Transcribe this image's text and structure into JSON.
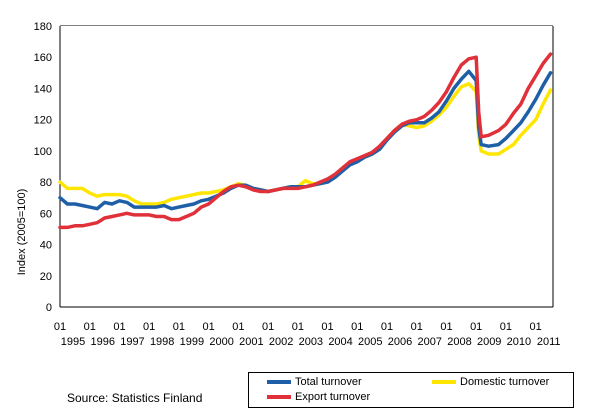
{
  "chart_data": {
    "type": "line",
    "title": "",
    "xlabel": "",
    "ylabel": "Index (2005=100)",
    "ylim": [
      0,
      180
    ],
    "yticks": [
      0,
      20,
      40,
      60,
      80,
      100,
      120,
      140,
      160,
      180
    ],
    "x_start": "1995-01",
    "x_end": "2011-08",
    "x_tick_month_label": "01",
    "x_tick_years": [
      "1995",
      "1996",
      "1997",
      "1998",
      "1999",
      "2000",
      "2001",
      "2002",
      "2003",
      "2004",
      "2005",
      "2006",
      "2007",
      "2008",
      "2009",
      "2010",
      "2011"
    ],
    "grid": "dotted",
    "legend_position": "bottom-right",
    "series": [
      {
        "name": "Total turnover",
        "color": "#1f5fa8",
        "points": [
          [
            "1995-01",
            70
          ],
          [
            "1995-04",
            66
          ],
          [
            "1995-07",
            66
          ],
          [
            "1995-10",
            65
          ],
          [
            "1996-01",
            64
          ],
          [
            "1996-04",
            63
          ],
          [
            "1996-07",
            67
          ],
          [
            "1996-10",
            66
          ],
          [
            "1997-01",
            68
          ],
          [
            "1997-04",
            67
          ],
          [
            "1997-07",
            64
          ],
          [
            "1997-10",
            64
          ],
          [
            "1998-01",
            64
          ],
          [
            "1998-04",
            64
          ],
          [
            "1998-07",
            65
          ],
          [
            "1998-10",
            63
          ],
          [
            "1999-01",
            64
          ],
          [
            "1999-04",
            65
          ],
          [
            "1999-07",
            66
          ],
          [
            "1999-10",
            68
          ],
          [
            "2000-01",
            69
          ],
          [
            "2000-04",
            71
          ],
          [
            "2000-07",
            73
          ],
          [
            "2000-10",
            76
          ],
          [
            "2001-01",
            78
          ],
          [
            "2001-04",
            78
          ],
          [
            "2001-07",
            76
          ],
          [
            "2001-10",
            75
          ],
          [
            "2002-01",
            74
          ],
          [
            "2002-04",
            75
          ],
          [
            "2002-07",
            76
          ],
          [
            "2002-10",
            77
          ],
          [
            "2003-01",
            77
          ],
          [
            "2003-04",
            77
          ],
          [
            "2003-07",
            78
          ],
          [
            "2003-10",
            79
          ],
          [
            "2004-01",
            80
          ],
          [
            "2004-04",
            83
          ],
          [
            "2004-07",
            87
          ],
          [
            "2004-10",
            91
          ],
          [
            "2005-01",
            93
          ],
          [
            "2005-04",
            96
          ],
          [
            "2005-07",
            98
          ],
          [
            "2005-10",
            101
          ],
          [
            "2006-01",
            107
          ],
          [
            "2006-04",
            112
          ],
          [
            "2006-07",
            116
          ],
          [
            "2006-10",
            118
          ],
          [
            "2007-01",
            118
          ],
          [
            "2007-04",
            118
          ],
          [
            "2007-07",
            121
          ],
          [
            "2007-10",
            125
          ],
          [
            "2008-01",
            132
          ],
          [
            "2008-04",
            140
          ],
          [
            "2008-07",
            146
          ],
          [
            "2008-10",
            151
          ],
          [
            "2009-01",
            145
          ],
          [
            "2009-02",
            115
          ],
          [
            "2009-03",
            104
          ],
          [
            "2009-06",
            103
          ],
          [
            "2009-10",
            104
          ],
          [
            "2010-01",
            108
          ],
          [
            "2010-04",
            113
          ],
          [
            "2010-07",
            118
          ],
          [
            "2010-10",
            125
          ],
          [
            "2011-01",
            133
          ],
          [
            "2011-04",
            142
          ],
          [
            "2011-07",
            150
          ]
        ]
      },
      {
        "name": "Domestic turnover",
        "color": "#ffe600",
        "points": [
          [
            "1995-01",
            80
          ],
          [
            "1995-04",
            76
          ],
          [
            "1995-07",
            76
          ],
          [
            "1995-10",
            76
          ],
          [
            "1996-01",
            73
          ],
          [
            "1996-04",
            71
          ],
          [
            "1996-07",
            72
          ],
          [
            "1996-10",
            72
          ],
          [
            "1997-01",
            72
          ],
          [
            "1997-04",
            71
          ],
          [
            "1997-07",
            68
          ],
          [
            "1997-10",
            66
          ],
          [
            "1998-01",
            66
          ],
          [
            "1998-04",
            66
          ],
          [
            "1998-07",
            67
          ],
          [
            "1998-10",
            69
          ],
          [
            "1999-01",
            70
          ],
          [
            "1999-04",
            71
          ],
          [
            "1999-07",
            72
          ],
          [
            "1999-10",
            73
          ],
          [
            "2000-01",
            73
          ],
          [
            "2000-04",
            74
          ],
          [
            "2000-07",
            75
          ],
          [
            "2000-10",
            77
          ],
          [
            "2001-01",
            79
          ],
          [
            "2001-04",
            78
          ],
          [
            "2001-07",
            76
          ],
          [
            "2001-10",
            75
          ],
          [
            "2002-01",
            74
          ],
          [
            "2002-04",
            75
          ],
          [
            "2002-07",
            76
          ],
          [
            "2002-10",
            77
          ],
          [
            "2003-01",
            77
          ],
          [
            "2003-04",
            81
          ],
          [
            "2003-07",
            79
          ],
          [
            "2003-10",
            79
          ],
          [
            "2004-01",
            80
          ],
          [
            "2004-04",
            84
          ],
          [
            "2004-07",
            88
          ],
          [
            "2004-10",
            92
          ],
          [
            "2005-01",
            94
          ],
          [
            "2005-04",
            96
          ],
          [
            "2005-07",
            98
          ],
          [
            "2005-10",
            102
          ],
          [
            "2006-01",
            108
          ],
          [
            "2006-04",
            113
          ],
          [
            "2006-07",
            117
          ],
          [
            "2006-10",
            116
          ],
          [
            "2007-01",
            115
          ],
          [
            "2007-04",
            116
          ],
          [
            "2007-07",
            119
          ],
          [
            "2007-10",
            123
          ],
          [
            "2008-01",
            128
          ],
          [
            "2008-04",
            135
          ],
          [
            "2008-07",
            141
          ],
          [
            "2008-10",
            143
          ],
          [
            "2009-01",
            138
          ],
          [
            "2009-02",
            110
          ],
          [
            "2009-03",
            100
          ],
          [
            "2009-06",
            98
          ],
          [
            "2009-10",
            98
          ],
          [
            "2010-01",
            101
          ],
          [
            "2010-04",
            104
          ],
          [
            "2010-07",
            110
          ],
          [
            "2010-10",
            115
          ],
          [
            "2011-01",
            120
          ],
          [
            "2011-04",
            130
          ],
          [
            "2011-07",
            139
          ]
        ]
      },
      {
        "name": "Export turnover",
        "color": "#e0303a",
        "points": [
          [
            "1995-01",
            51
          ],
          [
            "1995-04",
            51
          ],
          [
            "1995-07",
            52
          ],
          [
            "1995-10",
            52
          ],
          [
            "1996-01",
            53
          ],
          [
            "1996-04",
            54
          ],
          [
            "1996-07",
            57
          ],
          [
            "1996-10",
            58
          ],
          [
            "1997-01",
            59
          ],
          [
            "1997-04",
            60
          ],
          [
            "1997-07",
            59
          ],
          [
            "1997-10",
            59
          ],
          [
            "1998-01",
            59
          ],
          [
            "1998-04",
            58
          ],
          [
            "1998-07",
            58
          ],
          [
            "1998-10",
            56
          ],
          [
            "1999-01",
            56
          ],
          [
            "1999-04",
            58
          ],
          [
            "1999-07",
            60
          ],
          [
            "1999-10",
            64
          ],
          [
            "2000-01",
            66
          ],
          [
            "2000-04",
            70
          ],
          [
            "2000-07",
            74
          ],
          [
            "2000-10",
            77
          ],
          [
            "2001-01",
            78
          ],
          [
            "2001-04",
            77
          ],
          [
            "2001-07",
            75
          ],
          [
            "2001-10",
            74
          ],
          [
            "2002-01",
            74
          ],
          [
            "2002-04",
            75
          ],
          [
            "2002-07",
            76
          ],
          [
            "2002-10",
            76
          ],
          [
            "2003-01",
            76
          ],
          [
            "2003-04",
            77
          ],
          [
            "2003-07",
            78
          ],
          [
            "2003-10",
            80
          ],
          [
            "2004-01",
            82
          ],
          [
            "2004-04",
            85
          ],
          [
            "2004-07",
            89
          ],
          [
            "2004-10",
            93
          ],
          [
            "2005-01",
            95
          ],
          [
            "2005-04",
            97
          ],
          [
            "2005-07",
            99
          ],
          [
            "2005-10",
            103
          ],
          [
            "2006-01",
            108
          ],
          [
            "2006-04",
            113
          ],
          [
            "2006-07",
            117
          ],
          [
            "2006-10",
            119
          ],
          [
            "2007-01",
            120
          ],
          [
            "2007-04",
            122
          ],
          [
            "2007-07",
            126
          ],
          [
            "2007-10",
            131
          ],
          [
            "2008-01",
            138
          ],
          [
            "2008-04",
            147
          ],
          [
            "2008-07",
            155
          ],
          [
            "2008-10",
            159
          ],
          [
            "2009-01",
            160
          ],
          [
            "2009-02",
            125
          ],
          [
            "2009-03",
            109
          ],
          [
            "2009-06",
            110
          ],
          [
            "2009-10",
            113
          ],
          [
            "2010-01",
            117
          ],
          [
            "2010-04",
            124
          ],
          [
            "2010-07",
            130
          ],
          [
            "2010-10",
            140
          ],
          [
            "2011-01",
            148
          ],
          [
            "2011-04",
            156
          ],
          [
            "2011-07",
            162
          ]
        ]
      }
    ]
  },
  "legend": {
    "total": "Total turnover",
    "domestic": "Domestic turnover",
    "export": "Export turnover"
  },
  "source": "Source: Statistics Finland"
}
